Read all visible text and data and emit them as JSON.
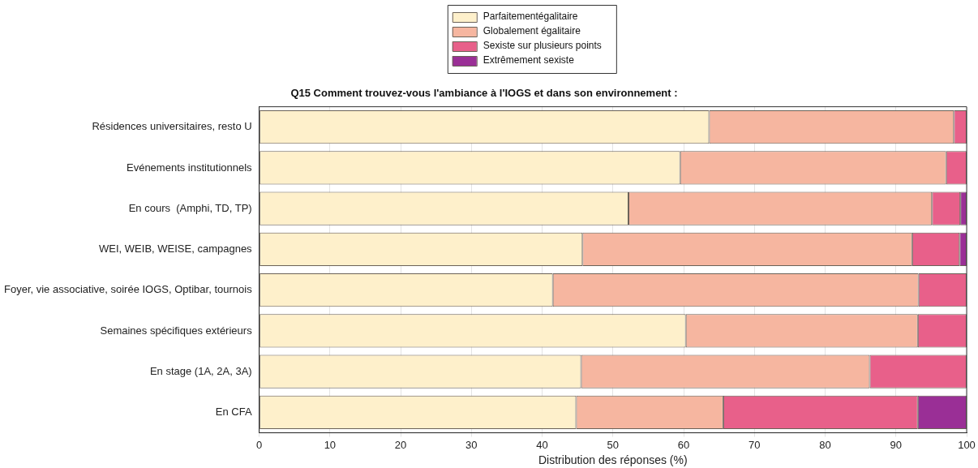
{
  "chart_data": {
    "type": "bar",
    "orientation": "horizontal",
    "stacked": true,
    "title": "Q15 Comment trouvez-vous l'ambiance à l'IOGS et dans son environnement :",
    "xlabel": "Distribution des réponses (%)",
    "categories": [
      "Résidences universitaires, resto U",
      "Evénements institutionnels",
      "En cours  (Amphi, TD, TP)",
      "WEI, WEIB, WEISE, campagnes",
      "Foyer, vie associative, soirée IOGS, Optibar, tournois",
      "Semaines spécifiques extérieurs",
      "En stage (1A, 2A, 3A)",
      "En CFA"
    ],
    "series": [
      {
        "name": "Parfaitementégalitaire",
        "color": "#fef0cb",
        "values": [
          63.6,
          59.5,
          52.2,
          45.7,
          41.5,
          60.3,
          45.5,
          44.8
        ]
      },
      {
        "name": "Globalement égalitaire",
        "color": "#f6b6a0",
        "values": [
          34.6,
          37.6,
          42.9,
          46.6,
          51.7,
          32.8,
          40.8,
          20.8
        ]
      },
      {
        "name": "Sexiste sur plusieurs points",
        "color": "#e8608a",
        "values": [
          1.8,
          2.9,
          4.0,
          6.7,
          6.8,
          6.9,
          13.7,
          27.5
        ]
      },
      {
        "name": "Extrêmement sexiste",
        "color": "#9a2f96",
        "values": [
          0,
          0,
          0.9,
          1.0,
          0,
          0,
          0,
          6.9
        ]
      }
    ],
    "xlim": [
      0,
      100
    ],
    "xticks": [
      0,
      10,
      20,
      30,
      40,
      50,
      60,
      70,
      80,
      90,
      100
    ],
    "grid": "x",
    "legend": "top"
  }
}
